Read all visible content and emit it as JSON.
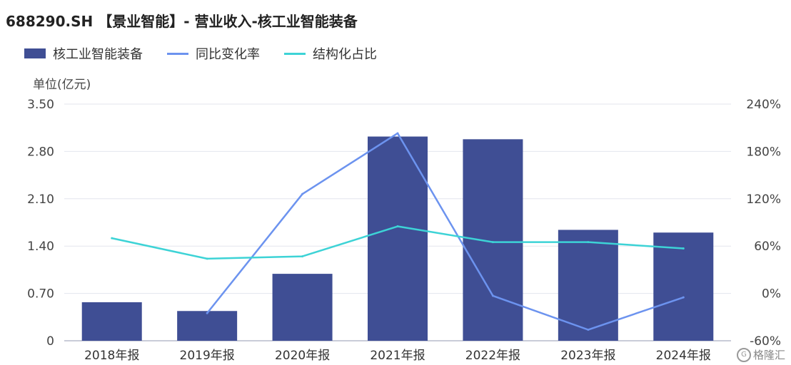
{
  "title": "688290.SH 【景业智能】- 营业收入-核工业智能装备",
  "unit_label": "单位(亿元)",
  "watermark": "格隆汇",
  "legend": [
    {
      "label": "核工业智能装备",
      "kind": "bar",
      "color": "#3f4e94"
    },
    {
      "label": "同比变化率",
      "kind": "line",
      "color": "#6c93ef"
    },
    {
      "label": "结构化占比",
      "kind": "line",
      "color": "#3dd3d6"
    }
  ],
  "chart_data": {
    "type": "bar",
    "categories": [
      "2018年报",
      "2019年报",
      "2020年报",
      "2021年报",
      "2022年报",
      "2023年报",
      "2024年报"
    ],
    "series": [
      {
        "name": "核工业智能装备",
        "type": "bar",
        "axis": "left",
        "color": "#3f4e94",
        "values": [
          0.57,
          0.44,
          0.99,
          3.02,
          2.98,
          1.64,
          1.6
        ]
      },
      {
        "name": "同比变化率",
        "type": "line",
        "axis": "right",
        "color": "#6c93ef",
        "values": [
          null,
          -25,
          126,
          203,
          -3,
          -46,
          -5
        ]
      },
      {
        "name": "结构化占比",
        "type": "line",
        "axis": "right",
        "color": "#3dd3d6",
        "values": [
          70,
          44,
          47,
          85,
          65,
          65,
          57
        ]
      }
    ],
    "y_left": {
      "ticks": [
        "0",
        "0.70",
        "1.40",
        "2.10",
        "2.80",
        "3.50"
      ],
      "min": 0,
      "max": 3.5
    },
    "y_right": {
      "ticks": [
        "-60%",
        "0%",
        "60%",
        "120%",
        "180%",
        "240%"
      ],
      "min": -60,
      "max": 240
    },
    "grid": true
  }
}
